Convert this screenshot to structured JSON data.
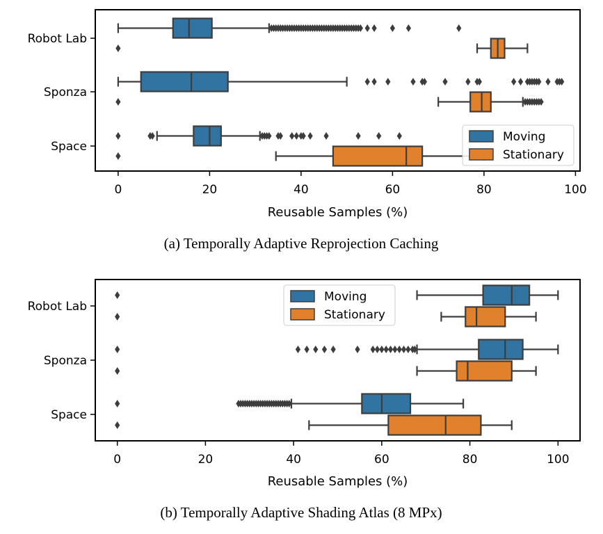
{
  "colors": {
    "moving": "#3274a1",
    "stationary": "#e1812c",
    "line": "#3d3d3d",
    "outlier": "#3d3d3d",
    "axis": "#000000"
  },
  "chart_data": [
    {
      "type": "box",
      "caption": "(a)  Temporally Adaptive Reprojection Caching",
      "xlabel": "Reusable Samples (%)",
      "xlim": [
        -5,
        101
      ],
      "xticks": [
        0,
        20,
        40,
        60,
        80,
        100
      ],
      "categories": [
        "Robot Lab",
        "Sponza",
        "Space"
      ],
      "legend": {
        "position": "bottom-right",
        "entries": [
          "Moving",
          "Stationary"
        ]
      },
      "series": [
        {
          "name": "Moving",
          "boxes": [
            {
              "category": "Robot Lab",
              "whisker_low": 0,
              "q1": 12,
              "median": 15.5,
              "q3": 20.5,
              "whisker_high": 33,
              "outliers": [
                33.5,
                34,
                34.5,
                35,
                35.5,
                36,
                36.5,
                37,
                37.5,
                38,
                38.5,
                39,
                39.5,
                40,
                40.5,
                41,
                41.5,
                42,
                42.5,
                43,
                43.5,
                44,
                44.5,
                45,
                45.5,
                46,
                46.5,
                47,
                47.5,
                48,
                48.5,
                49,
                49.5,
                50,
                50.5,
                51,
                51.5,
                52,
                52.5,
                53,
                54.5,
                56,
                60,
                63.5,
                74.5
              ]
            },
            {
              "category": "Sponza",
              "whisker_low": 0,
              "q1": 5,
              "median": 16,
              "q3": 24,
              "whisker_high": 50,
              "outliers": [
                54.5,
                56,
                59,
                64.5,
                66.5,
                67,
                71.5,
                76.5,
                78.5,
                79,
                86.5,
                88,
                89.5,
                90,
                90.5,
                91,
                91.5,
                92,
                94,
                96,
                96.5,
                97
              ]
            },
            {
              "category": "Space",
              "whisker_low": 8.5,
              "q1": 16.5,
              "median": 20,
              "q3": 22.5,
              "whisker_high": 31,
              "outliers": [
                0,
                7,
                7.5,
                31.5,
                32,
                32.5,
                33,
                35,
                35.5,
                38,
                39,
                40,
                40.5,
                42,
                45.5,
                52.5,
                57,
                61.5
              ]
            }
          ]
        },
        {
          "name": "Stationary",
          "boxes": [
            {
              "category": "Robot Lab",
              "whisker_low": 78.5,
              "q1": 81.5,
              "median": 83,
              "q3": 84.5,
              "whisker_high": 89.5,
              "outliers": [
                0
              ]
            },
            {
              "category": "Sponza",
              "whisker_low": 70,
              "q1": 77,
              "median": 79.5,
              "q3": 81.5,
              "whisker_high": 88.5,
              "outliers": [
                0,
                89,
                89.5,
                90,
                90.5,
                91,
                91.5,
                92,
                92.5
              ]
            },
            {
              "category": "Space",
              "whisker_low": 34.5,
              "q1": 47,
              "median": 63,
              "q3": 66.5,
              "whisker_high": 80,
              "outliers": [
                0
              ]
            }
          ]
        }
      ]
    },
    {
      "type": "box",
      "caption": "(b)  Temporally Adaptive Shading Atlas (8 MPx)",
      "xlabel": "Reusable Samples (%)",
      "xlim": [
        -5,
        105
      ],
      "xticks": [
        0,
        20,
        40,
        60,
        80,
        100
      ],
      "categories": [
        "Robot Lab",
        "Sponza",
        "Space"
      ],
      "legend": {
        "position": "top-center",
        "entries": [
          "Moving",
          "Stationary"
        ]
      },
      "series": [
        {
          "name": "Moving",
          "boxes": [
            {
              "category": "Robot Lab",
              "whisker_low": 68,
              "q1": 83,
              "median": 89.5,
              "q3": 93.5,
              "whisker_high": 100,
              "outliers": [
                0
              ]
            },
            {
              "category": "Sponza",
              "whisker_low": 68,
              "q1": 82,
              "median": 88,
              "q3": 92,
              "whisker_high": 100,
              "outliers": [
                0,
                41,
                43,
                45,
                47,
                49,
                54.5,
                58,
                59,
                60,
                61,
                62,
                63,
                64,
                65,
                66,
                67,
                67.5
              ]
            },
            {
              "category": "Space",
              "whisker_low": 39.5,
              "q1": 55.5,
              "median": 60,
              "q3": 66.5,
              "whisker_high": 78.5,
              "outliers": [
                0,
                27.5,
                28,
                28.5,
                29,
                29.5,
                30,
                30.5,
                31,
                31.5,
                32,
                32.5,
                33,
                33.5,
                34,
                34.5,
                35,
                35.5,
                36,
                36.5,
                37,
                37.5,
                38,
                38.5,
                39
              ]
            }
          ]
        },
        {
          "name": "Stationary",
          "boxes": [
            {
              "category": "Robot Lab",
              "whisker_low": 73.5,
              "q1": 79,
              "median": 81.5,
              "q3": 88,
              "whisker_high": 95,
              "outliers": [
                0
              ]
            },
            {
              "category": "Sponza",
              "whisker_low": 68,
              "q1": 77,
              "median": 79.5,
              "q3": 89.5,
              "whisker_high": 95,
              "outliers": [
                0
              ]
            },
            {
              "category": "Space",
              "whisker_low": 43.5,
              "q1": 61.5,
              "median": 74.5,
              "q3": 82.5,
              "whisker_high": 89.5,
              "outliers": [
                0
              ]
            }
          ]
        }
      ]
    }
  ]
}
